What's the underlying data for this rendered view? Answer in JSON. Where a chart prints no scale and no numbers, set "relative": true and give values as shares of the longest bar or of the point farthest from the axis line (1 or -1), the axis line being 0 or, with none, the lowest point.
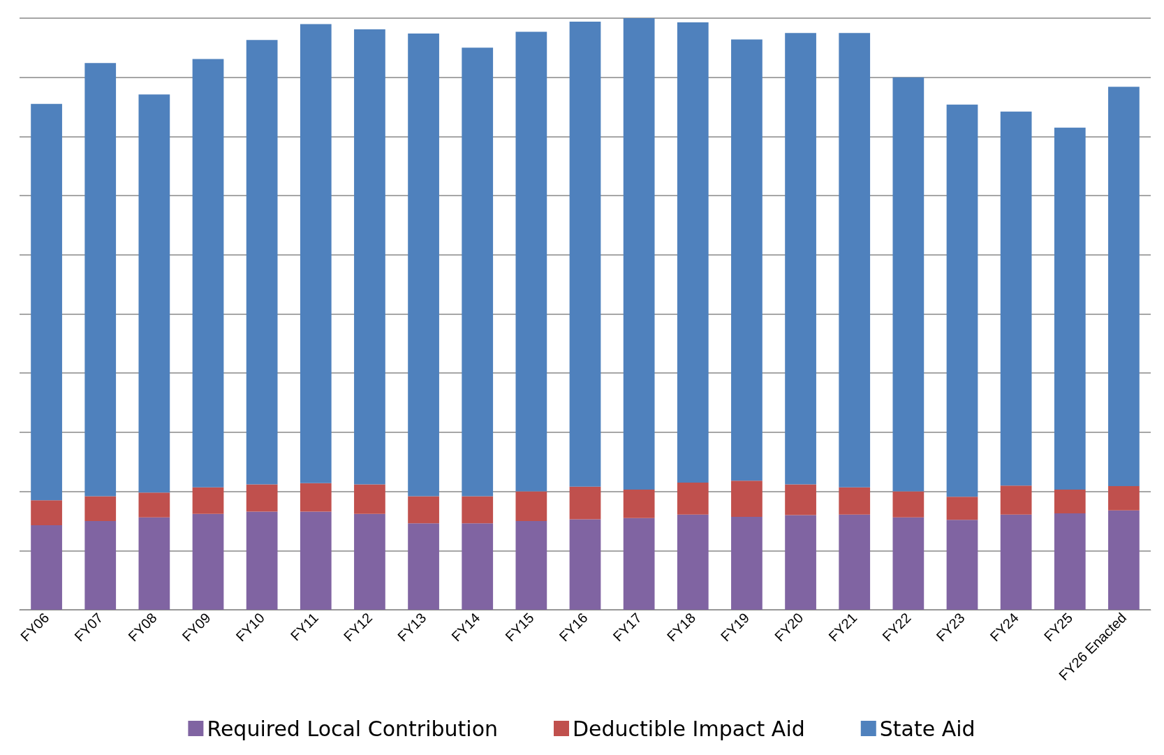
{
  "chart_data": {
    "type": "bar",
    "stacked": true,
    "relative": true,
    "grid": "y",
    "legend": "bottom",
    "categories": [
      "FY06",
      "FY07",
      "FY08",
      "FY09",
      "FY10",
      "FY11",
      "FY12",
      "FY13",
      "FY14",
      "FY15",
      "FY16",
      "FY17",
      "FY18",
      "FY19",
      "FY20",
      "FY21",
      "FY22",
      "FY23",
      "FY24",
      "FY25",
      "FY26 Enacted"
    ],
    "series": [
      {
        "name": "Required Local Contribution",
        "color": "#8064a2",
        "values": [
          0.143,
          0.15,
          0.156,
          0.162,
          0.166,
          0.166,
          0.162,
          0.146,
          0.146,
          0.15,
          0.153,
          0.155,
          0.161,
          0.157,
          0.16,
          0.161,
          0.156,
          0.152,
          0.161,
          0.163,
          0.168
        ]
      },
      {
        "name": "Deductible Impact Aid",
        "color": "#c0504d",
        "values": [
          0.042,
          0.042,
          0.042,
          0.045,
          0.046,
          0.048,
          0.05,
          0.046,
          0.046,
          0.05,
          0.055,
          0.048,
          0.054,
          0.061,
          0.052,
          0.046,
          0.044,
          0.039,
          0.049,
          0.04,
          0.041
        ]
      },
      {
        "name": "State Aid",
        "color": "#4f81bd",
        "values": [
          0.67,
          0.732,
          0.673,
          0.724,
          0.751,
          0.776,
          0.769,
          0.782,
          0.758,
          0.777,
          0.786,
          0.797,
          0.778,
          0.746,
          0.763,
          0.768,
          0.7,
          0.663,
          0.632,
          0.612,
          0.675
        ]
      }
    ]
  }
}
